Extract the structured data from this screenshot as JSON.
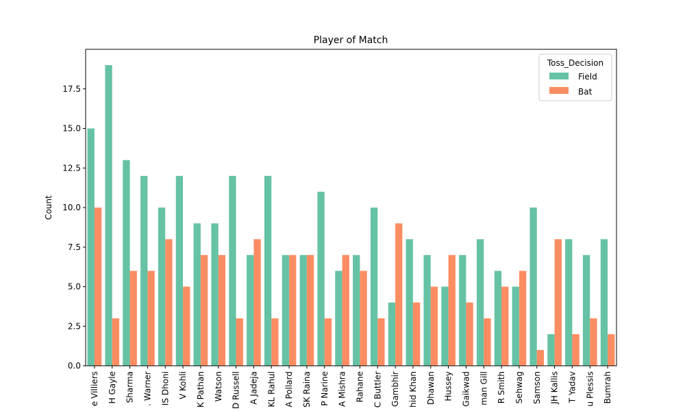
{
  "chart_data": {
    "type": "bar",
    "title": "Player of Match",
    "xlabel": "",
    "ylabel": "Count",
    "ylim": [
      0,
      20
    ],
    "yticks": [
      0.0,
      2.5,
      5.0,
      7.5,
      10.0,
      12.5,
      15.0,
      17.5
    ],
    "ytick_labels": [
      "0.0",
      "2.5",
      "5.0",
      "7.5",
      "10.0",
      "12.5",
      "15.0",
      "17.5"
    ],
    "grid": false,
    "legend": {
      "title": "Toss_Decision",
      "placement": "top-right"
    },
    "categories": [
      "e Villiers",
      "H Gayle",
      "Sharma",
      ". Warner",
      "IS Dhoni",
      "V Kohli",
      "K Pathan",
      "Watson",
      "D Russell",
      "A Jadeja",
      "KL Rahul",
      "A Pollard",
      "SK Raina",
      "P Narine",
      "A Mishra",
      "Rahane",
      "C Buttler",
      "Gambhir",
      "hid Khan",
      "Dhawan",
      "Hussey",
      "Gaikwad",
      "man Gill",
      "R Smith",
      "Sehwag",
      "Samson",
      "JH Kallis",
      "T Yadav",
      "u Plessis",
      "Bumrah"
    ],
    "series": [
      {
        "name": "Field",
        "color": "#66c2a5",
        "values": [
          15,
          19,
          13,
          12,
          10,
          12,
          9,
          9,
          12,
          7,
          12,
          7,
          7,
          11,
          6,
          7,
          10,
          4,
          8,
          7,
          5,
          7,
          8,
          6,
          5,
          10,
          2,
          8,
          7,
          8
        ]
      },
      {
        "name": "Bat",
        "color": "#fc8d62",
        "values": [
          10,
          3,
          6,
          6,
          8,
          5,
          7,
          7,
          3,
          8,
          3,
          7,
          7,
          3,
          7,
          6,
          3,
          9,
          4,
          5,
          7,
          4,
          3,
          5,
          6,
          1,
          8,
          2,
          3,
          2
        ]
      }
    ]
  }
}
